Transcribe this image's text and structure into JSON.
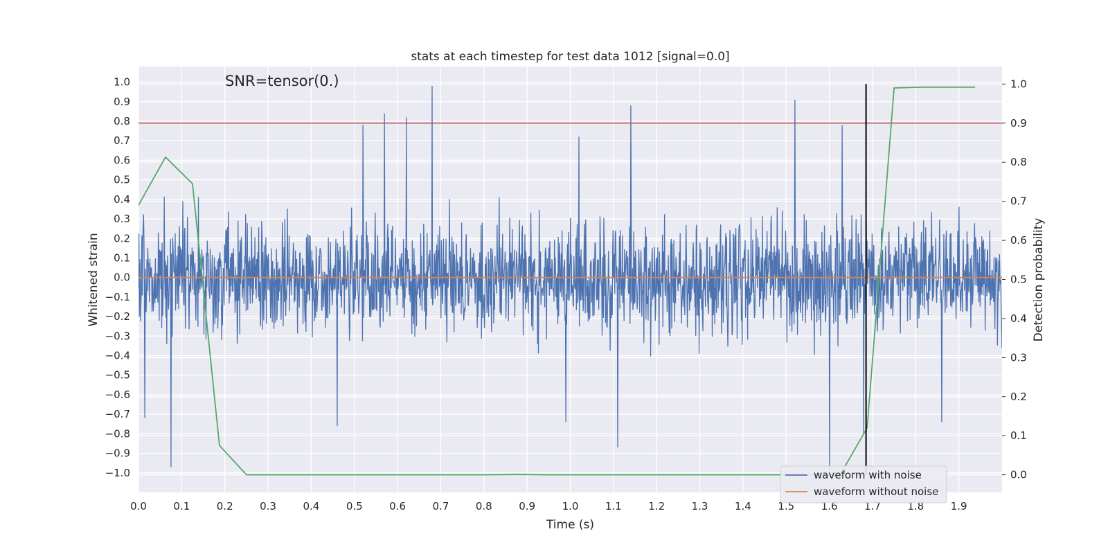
{
  "chart_data": {
    "type": "line",
    "title": "stats at each timestep for test data 1012 [signal=0.0]",
    "annotation": "SNR=tensor(0.)",
    "xlabel": "Time (s)",
    "ylabel": "Whitened strain",
    "y2label": "Detection probability",
    "xlim": [
      0.0,
      2.0
    ],
    "ylim": [
      -1.1,
      1.08
    ],
    "y2lim": [
      -0.045,
      1.045
    ],
    "xticks": [
      "0.0",
      "0.1",
      "0.2",
      "0.3",
      "0.4",
      "0.5",
      "0.6",
      "0.7",
      "0.8",
      "0.9",
      "1.0",
      "1.1",
      "1.2",
      "1.3",
      "1.4",
      "1.5",
      "1.6",
      "1.7",
      "1.8",
      "1.9"
    ],
    "yticks": [
      "1.0",
      "0.9",
      "0.8",
      "0.7",
      "0.6",
      "0.5",
      "0.4",
      "0.3",
      "0.2",
      "0.1",
      "0.0",
      "−0.1",
      "−0.2",
      "−0.3",
      "−0.4",
      "−0.5",
      "−0.6",
      "−0.7",
      "−0.8",
      "−0.9",
      "−1.0"
    ],
    "y2ticks": [
      "1.0",
      "0.9",
      "0.8",
      "0.7",
      "0.6",
      "0.5",
      "0.4",
      "0.3",
      "0.2",
      "0.1",
      "0.0"
    ],
    "grid": true,
    "legend_position": "lower-right",
    "series": [
      {
        "name": "waveform with noise",
        "color": "#4c72b0",
        "axis": "left",
        "x_start": 0.0,
        "x_end": 2.0,
        "samples": 2048,
        "values": "dense noise, mostly within [-0.6, 0.6]; notable peaks 0.68s:0.98, 1.14s:0.88, 1.52s:0.91, 0.57s:0.84, 0.62s:0.82, 0.52s:0.78, 1.63s:0.78; troughs 0.075s:-0.97, 1.11s:-0.87, 1.60s:-1.0, 1.68s:-0.8, 1.75s:-0.67",
        "peaks": [
          [
            0.68,
            0.98
          ],
          [
            1.14,
            0.88
          ],
          [
            1.52,
            0.91
          ],
          [
            0.57,
            0.84
          ],
          [
            0.62,
            0.82
          ],
          [
            0.52,
            0.78
          ],
          [
            1.63,
            0.78
          ],
          [
            1.02,
            0.72
          ],
          [
            0.075,
            -0.97
          ],
          [
            1.11,
            -0.87
          ],
          [
            1.6,
            -1.0
          ],
          [
            1.68,
            -0.8
          ],
          [
            0.46,
            -0.76
          ],
          [
            0.99,
            -0.74
          ],
          [
            1.86,
            -0.74
          ],
          [
            0.015,
            -0.72
          ]
        ]
      },
      {
        "name": "waveform without noise",
        "color": "#dd8452",
        "axis": "left",
        "x": [
          0.0,
          2.0
        ],
        "y": [
          0.0,
          0.0
        ]
      },
      {
        "name": "",
        "color": "#55a868",
        "axis": "right",
        "x": [
          0.0,
          0.0625,
          0.125,
          0.1875,
          0.25,
          0.3125,
          0.375,
          0.4375,
          0.5,
          0.5625,
          0.625,
          0.6875,
          0.75,
          0.8125,
          0.875,
          0.9375,
          1.0,
          1.0625,
          1.125,
          1.1875,
          1.25,
          1.3125,
          1.375,
          1.4375,
          1.5,
          1.5625,
          1.625,
          1.6875,
          1.75,
          1.8125,
          1.875,
          1.9375
        ],
        "y": [
          0.69,
          0.813,
          0.745,
          0.075,
          0.0,
          0.0,
          0.0,
          0.0,
          0.0,
          0.0,
          0.0,
          0.0,
          0.0,
          0.0,
          0.001,
          0.0,
          0.0,
          0.0,
          0.0,
          0.0,
          0.0,
          0.0,
          0.0,
          0.0,
          0.0,
          0.0,
          0.0,
          0.12,
          0.99,
          0.992,
          0.992,
          0.992
        ]
      }
    ],
    "threshold": {
      "color": "#c44e52",
      "axis": "right",
      "value": 0.9
    },
    "vline": {
      "color": "#000000",
      "x": 1.685,
      "y2_range": [
        0.0,
        1.0
      ]
    },
    "colors": {
      "background": "#eaeaf2",
      "grid": "#ffffff",
      "text": "#262626"
    }
  }
}
